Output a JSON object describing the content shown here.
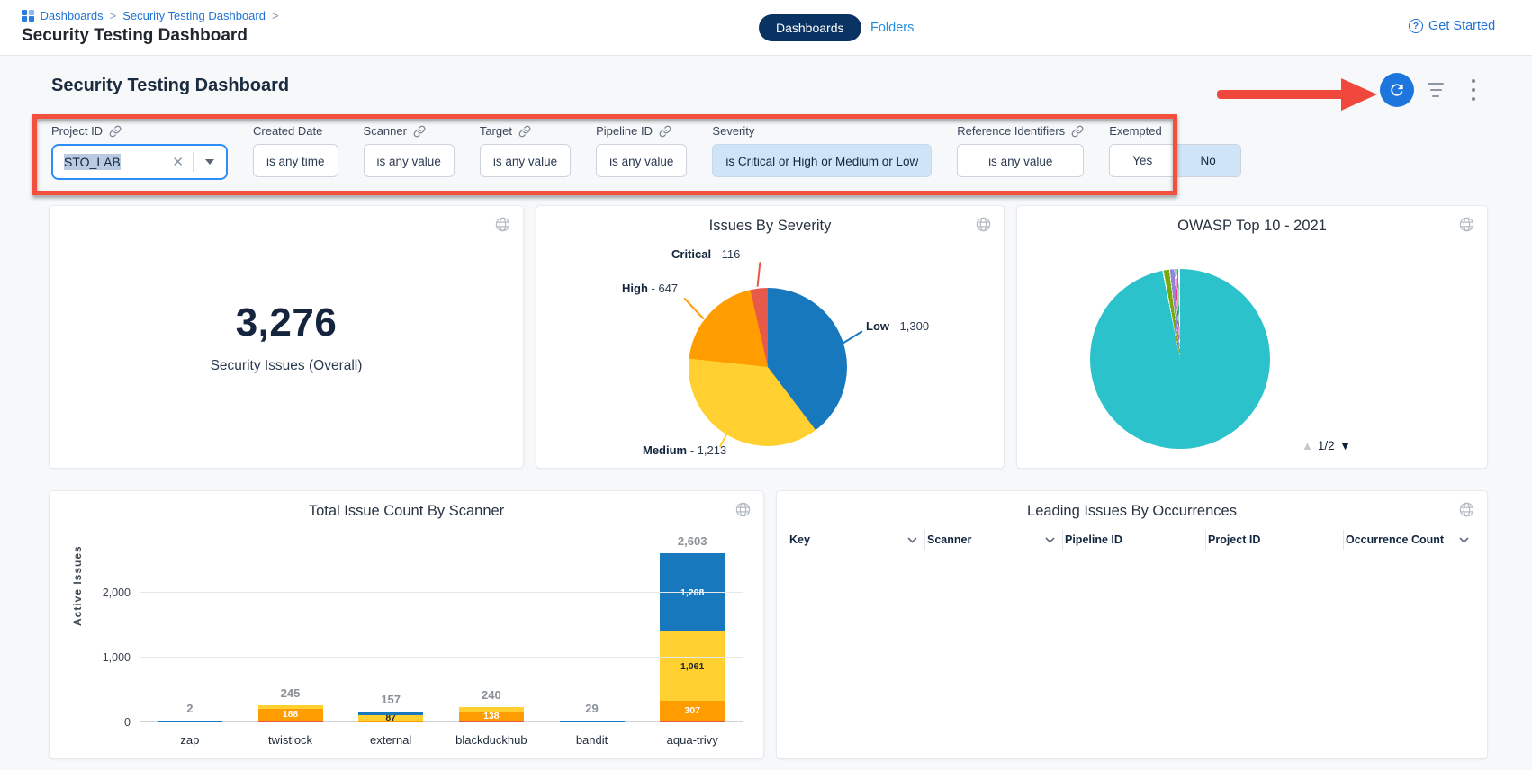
{
  "header": {
    "breadcrumb": {
      "separator": ">",
      "items": [
        "Dashboards",
        "Security Testing Dashboard"
      ]
    },
    "page_title": "Security Testing Dashboard",
    "tabs": [
      {
        "label": "Dashboards"
      },
      {
        "label": "Folders"
      }
    ],
    "help_glyph": "?",
    "get_started_label": "Get Started"
  },
  "dashboard": {
    "title": "Security Testing Dashboard"
  },
  "filters": {
    "project_id": {
      "label": "Project ID",
      "value": "STO_LAB",
      "clear_glyph": "✕"
    },
    "created_date": {
      "label": "Created Date",
      "value": "is any time"
    },
    "scanner": {
      "label": "Scanner",
      "value": "is any value"
    },
    "target": {
      "label": "Target",
      "value": "is any value"
    },
    "pipeline_id": {
      "label": "Pipeline ID",
      "value": "is any value"
    },
    "severity": {
      "label": "Severity",
      "value": "is Critical or High or Medium or Low"
    },
    "reference_identifiers": {
      "label": "Reference Identifiers",
      "value": "is any value"
    },
    "exempted": {
      "label": "Exempted",
      "options": [
        "Yes",
        "No"
      ],
      "selected": "No"
    }
  },
  "tile": {
    "value": "3,276",
    "label": "Security Issues (Overall)"
  },
  "chart_data": [
    {
      "type": "pie",
      "title": "Issues By Severity",
      "total": 3276,
      "slices": [
        {
          "name": "Low",
          "value": 1300,
          "color": "#1878be",
          "label": "Low",
          "suffix": " - 1,300"
        },
        {
          "name": "Medium",
          "value": 1213,
          "color": "#ffd02f",
          "label": "Medium",
          "suffix": " - 1,213"
        },
        {
          "name": "High",
          "value": 647,
          "color": "#ff9d00",
          "label": "High",
          "suffix": " - 647"
        },
        {
          "name": "Critical",
          "value": 116,
          "color": "#e8594a",
          "label": "Critical",
          "suffix": " - 116"
        }
      ]
    },
    {
      "type": "pie",
      "title": "OWASP Top 10 - 2021",
      "pagination": {
        "current": "1/2",
        "up_glyph": "▲",
        "down_glyph": "▼"
      },
      "slices": [
        {
          "name": "dominant-teal",
          "color": "#2cc2cc",
          "deg": 348.6
        },
        {
          "name": "gap",
          "color": "#ffffff",
          "deg": 0.8
        },
        {
          "name": "olive-green",
          "color": "#79aa0c",
          "deg": 3.6
        },
        {
          "name": "gap",
          "color": "#ffffff",
          "deg": 0.5
        },
        {
          "name": "purple",
          "color": "#9184d8",
          "deg": 2.8
        },
        {
          "name": "gap",
          "color": "#ffffff",
          "deg": 0.4
        },
        {
          "name": "pink",
          "color": "#f0368f",
          "deg": 0.9
        },
        {
          "name": "gap",
          "color": "#ffffff",
          "deg": 0.4
        },
        {
          "name": "bright-green",
          "color": "#2db868",
          "deg": 0.8
        },
        {
          "name": "gap",
          "color": "#ffffff",
          "deg": 1.2
        }
      ]
    },
    {
      "type": "stacked-bar",
      "title": "Total Issue Count By Scanner",
      "ylabel": "Active Issues",
      "ymax": 2700,
      "yticks": [
        0,
        1000,
        2000
      ],
      "ytick_labels": [
        "0",
        "1,000",
        "2,000"
      ],
      "categories": [
        "zap",
        "twistlock",
        "external",
        "blackduckhub",
        "bandit",
        "aqua-trivy"
      ],
      "totals": [
        2,
        245,
        157,
        240,
        29,
        2603
      ],
      "total_labels": [
        "2",
        "245",
        "157",
        "240",
        "29",
        "2,603"
      ],
      "bars": [
        {
          "segments": [
            {
              "severity": "Low",
              "color": "#1878be",
              "value": 2
            }
          ]
        },
        {
          "segments": [
            {
              "severity": "Critical",
              "color": "#e8594a",
              "value": 9
            },
            {
              "severity": "High",
              "color": "#ff9d00",
              "value": 188,
              "label": "188",
              "label_color": "#ffffff"
            },
            {
              "severity": "Medium",
              "color": "#ffd02f",
              "value": 48
            }
          ]
        },
        {
          "segments": [
            {
              "severity": "High",
              "color": "#ff9d00",
              "value": 15
            },
            {
              "severity": "Medium",
              "color": "#ffd02f",
              "value": 87,
              "label": "87",
              "label_color": "#1b2735"
            },
            {
              "severity": "Low",
              "color": "#1878be",
              "value": 55
            }
          ]
        },
        {
          "segments": [
            {
              "severity": "Critical",
              "color": "#e8594a",
              "value": 26
            },
            {
              "severity": "High",
              "color": "#ff9d00",
              "value": 138,
              "label": "138",
              "label_color": "#ffffff"
            },
            {
              "severity": "Medium",
              "color": "#ffd02f",
              "value": 76
            }
          ]
        },
        {
          "segments": [
            {
              "severity": "Low",
              "color": "#1878be",
              "value": 29
            }
          ]
        },
        {
          "segments": [
            {
              "severity": "Critical",
              "color": "#e8594a",
              "value": 27
            },
            {
              "severity": "High",
              "color": "#ff9d00",
              "value": 307,
              "label": "307",
              "label_color": "#ffffff"
            },
            {
              "severity": "Medium",
              "color": "#ffd02f",
              "value": 1061,
              "label": "1,061",
              "label_color": "#1b2735"
            },
            {
              "severity": "Low",
              "color": "#1878be",
              "value": 1208,
              "label": "1,208",
              "label_color": "#ffffff"
            }
          ]
        }
      ]
    }
  ],
  "table": {
    "title": "Leading Issues By Occurrences",
    "columns": [
      {
        "label": "Key",
        "sortable": true
      },
      {
        "label": "Scanner",
        "sortable": true
      },
      {
        "label": "Pipeline ID",
        "sortable": false
      },
      {
        "label": "Project ID",
        "sortable": false
      },
      {
        "label": "Occurrence Count",
        "sortable": true
      }
    ],
    "rows": []
  },
  "colors": {
    "accent_blue": "#1d76dd",
    "link_blue": "#1f72d4",
    "annotation_red": "#f0483d",
    "severity_critical": "#e8594a",
    "severity_high": "#ff9d00",
    "severity_medium": "#ffd02f",
    "severity_low": "#1878be",
    "owasp_teal": "#2cc2cc"
  }
}
